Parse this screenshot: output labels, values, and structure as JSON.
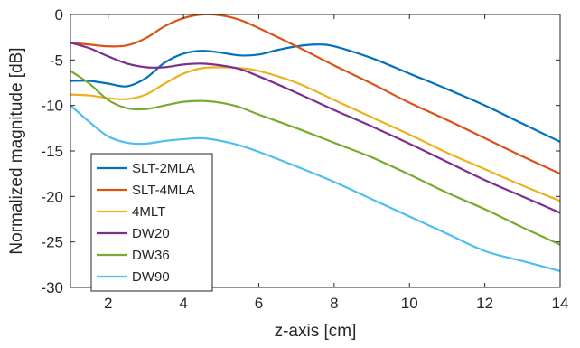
{
  "chart_data": {
    "type": "line",
    "xlabel": "z-axis [cm]",
    "ylabel": "Normalized magnitude [dB]",
    "xlim": [
      1,
      14
    ],
    "ylim": [
      -30,
      0
    ],
    "xticks": [
      2,
      4,
      6,
      8,
      10,
      12,
      14
    ],
    "yticks": [
      0,
      -5,
      -10,
      -15,
      -20,
      -25,
      -30
    ],
    "grid": false,
    "legend_position": "bottom-left",
    "series": [
      {
        "name": "SLT-2MLA",
        "color": "#0072BD",
        "x": [
          1,
          1.5,
          2,
          2.5,
          3,
          3.5,
          4,
          4.5,
          5,
          5.5,
          6,
          6.5,
          7,
          7.5,
          8,
          9,
          10,
          11,
          12,
          13,
          14
        ],
        "y": [
          -7.3,
          -7.3,
          -7.6,
          -7.9,
          -7.0,
          -5.3,
          -4.3,
          -4.0,
          -4.2,
          -4.5,
          -4.4,
          -3.9,
          -3.5,
          -3.3,
          -3.5,
          -4.8,
          -6.5,
          -8.2,
          -10.0,
          -12.0,
          -14.0
        ]
      },
      {
        "name": "SLT-4MLA",
        "color": "#D95319",
        "x": [
          1,
          1.5,
          2,
          2.5,
          3,
          3.5,
          4,
          4.5,
          5,
          5.5,
          6,
          7,
          8,
          9,
          10,
          11,
          12,
          13,
          14
        ],
        "y": [
          -3.1,
          -3.3,
          -3.5,
          -3.4,
          -2.6,
          -1.3,
          -0.4,
          0.0,
          -0.1,
          -0.6,
          -1.5,
          -3.5,
          -5.6,
          -7.6,
          -9.7,
          -11.6,
          -13.6,
          -15.6,
          -17.5
        ]
      },
      {
        "name": "4MLT",
        "color": "#EDB120",
        "x": [
          1,
          1.5,
          2,
          2.5,
          3,
          3.5,
          4,
          4.5,
          5,
          5.5,
          6,
          7,
          8,
          9,
          10,
          11,
          12,
          13,
          14
        ],
        "y": [
          -8.8,
          -8.9,
          -9.2,
          -9.3,
          -8.8,
          -7.6,
          -6.5,
          -5.9,
          -5.8,
          -5.9,
          -6.2,
          -7.5,
          -9.4,
          -11.3,
          -13.2,
          -15.2,
          -17.0,
          -18.8,
          -20.5
        ]
      },
      {
        "name": "DW20",
        "color": "#7E2F8E",
        "x": [
          1,
          1.5,
          2,
          2.5,
          3,
          3.5,
          4,
          4.5,
          5,
          5.5,
          6,
          7,
          8,
          9,
          10,
          11,
          12,
          13,
          14
        ],
        "y": [
          -3.1,
          -3.7,
          -4.6,
          -5.4,
          -5.8,
          -5.8,
          -5.5,
          -5.4,
          -5.6,
          -6.0,
          -6.8,
          -8.6,
          -10.5,
          -12.3,
          -14.2,
          -16.2,
          -18.2,
          -20.0,
          -21.8
        ]
      },
      {
        "name": "DW36",
        "color": "#77AC30",
        "x": [
          1,
          1.5,
          2,
          2.5,
          3,
          3.5,
          4,
          4.5,
          5,
          5.5,
          6,
          7,
          8,
          9,
          10,
          11,
          12,
          13,
          14
        ],
        "y": [
          -6.2,
          -7.6,
          -9.4,
          -10.3,
          -10.4,
          -10.0,
          -9.6,
          -9.5,
          -9.7,
          -10.2,
          -11.0,
          -12.5,
          -14.1,
          -15.7,
          -17.6,
          -19.6,
          -21.4,
          -23.4,
          -25.3
        ]
      },
      {
        "name": "DW90",
        "color": "#4DBEEE",
        "x": [
          1,
          1.5,
          2,
          2.5,
          3,
          3.5,
          4,
          4.5,
          5,
          5.5,
          6,
          7,
          8,
          9,
          10,
          11,
          12,
          13,
          14
        ],
        "y": [
          -10.0,
          -11.8,
          -13.4,
          -14.1,
          -14.2,
          -13.9,
          -13.7,
          -13.6,
          -13.9,
          -14.4,
          -15.1,
          -16.7,
          -18.4,
          -20.3,
          -22.2,
          -24.1,
          -26.0,
          -27.1,
          -28.2
        ]
      }
    ]
  }
}
